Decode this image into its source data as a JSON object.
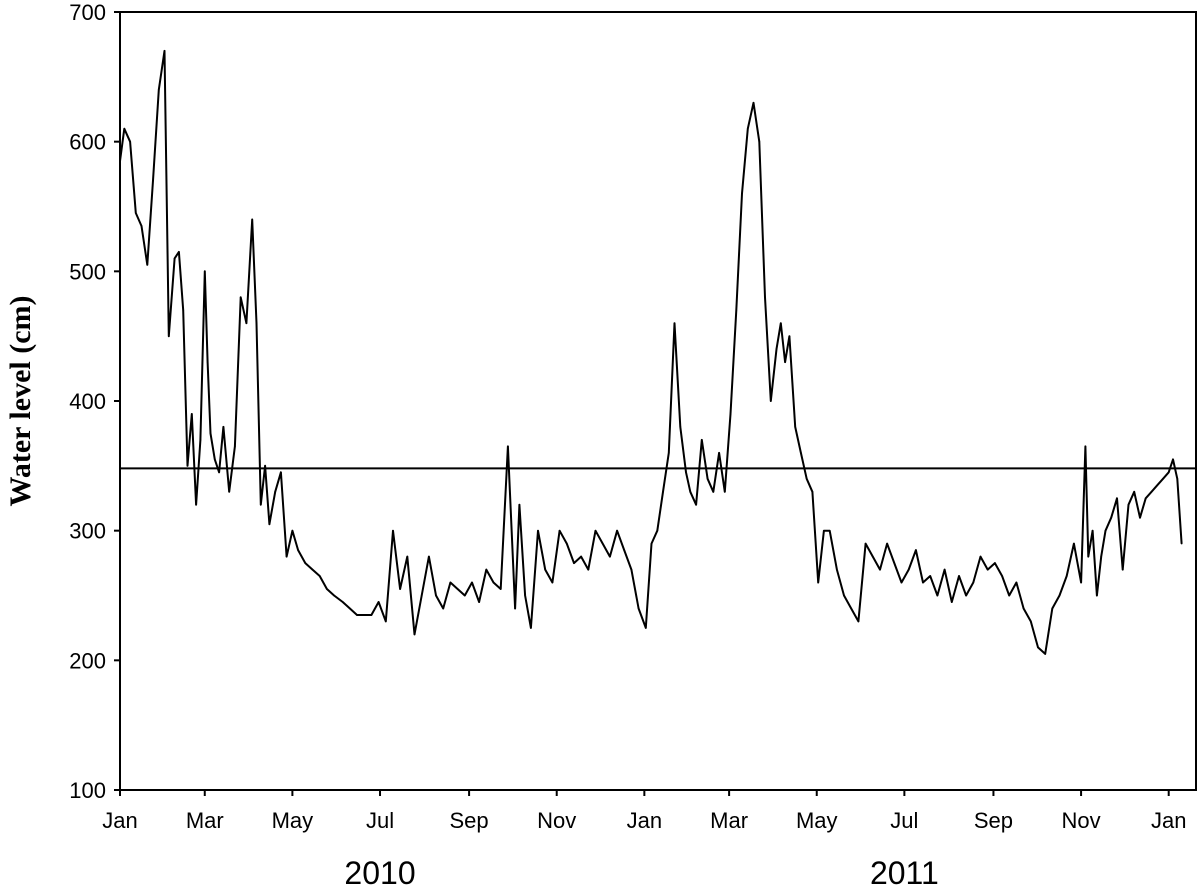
{
  "chart_data": {
    "type": "line",
    "title": "",
    "xlabel": "",
    "ylabel": "Water level (cm)",
    "ylim": [
      100,
      700
    ],
    "yticks": [
      100,
      200,
      300,
      400,
      500,
      600,
      700
    ],
    "xlim": [
      "2010-01-01",
      "2012-01-20"
    ],
    "month_ticks": [
      {
        "label": "Jan",
        "date": "2010-01-01"
      },
      {
        "label": "Mar",
        "date": "2010-03-01"
      },
      {
        "label": "May",
        "date": "2010-05-01"
      },
      {
        "label": "Jul",
        "date": "2010-07-01"
      },
      {
        "label": "Sep",
        "date": "2010-09-01"
      },
      {
        "label": "Nov",
        "date": "2010-11-01"
      },
      {
        "label": "Jan",
        "date": "2011-01-01"
      },
      {
        "label": "Mar",
        "date": "2011-03-01"
      },
      {
        "label": "May",
        "date": "2011-05-01"
      },
      {
        "label": "Jul",
        "date": "2011-07-01"
      },
      {
        "label": "Sep",
        "date": "2011-09-01"
      },
      {
        "label": "Nov",
        "date": "2011-11-01"
      },
      {
        "label": "Jan",
        "date": "2012-01-01"
      }
    ],
    "year_labels": [
      {
        "label": "2010",
        "date": "2010-07-01"
      },
      {
        "label": "2011",
        "date": "2011-07-01"
      }
    ],
    "reference_line": {
      "y": 348
    },
    "grid": false,
    "legend": "none",
    "colors": {
      "line": "#000000",
      "axis": "#000000"
    },
    "series": [
      {
        "x": [
          "2010-01-01",
          "2010-01-04",
          "2010-01-08",
          "2010-01-12",
          "2010-01-16",
          "2010-01-20",
          "2010-01-24",
          "2010-01-28",
          "2010-02-01",
          "2010-02-04",
          "2010-02-08",
          "2010-02-11",
          "2010-02-14",
          "2010-02-17",
          "2010-02-20",
          "2010-02-23",
          "2010-02-26",
          "2010-03-01",
          "2010-03-03",
          "2010-03-05",
          "2010-03-08",
          "2010-03-11",
          "2010-03-14",
          "2010-03-18",
          "2010-03-22",
          "2010-03-26",
          "2010-03-30",
          "2010-04-03",
          "2010-04-06",
          "2010-04-09",
          "2010-04-12",
          "2010-04-15",
          "2010-04-19",
          "2010-04-23",
          "2010-04-27",
          "2010-05-01",
          "2010-05-05",
          "2010-05-10",
          "2010-05-15",
          "2010-05-20",
          "2010-05-25",
          "2010-05-30",
          "2010-06-05",
          "2010-06-10",
          "2010-06-15",
          "2010-06-20",
          "2010-06-25",
          "2010-06-30",
          "2010-07-05",
          "2010-07-10",
          "2010-07-15",
          "2010-07-20",
          "2010-07-25",
          "2010-07-30",
          "2010-08-04",
          "2010-08-09",
          "2010-08-14",
          "2010-08-19",
          "2010-08-24",
          "2010-08-29",
          "2010-09-03",
          "2010-09-08",
          "2010-09-13",
          "2010-09-18",
          "2010-09-23",
          "2010-09-28",
          "2010-10-03",
          "2010-10-06",
          "2010-10-10",
          "2010-10-14",
          "2010-10-19",
          "2010-10-24",
          "2010-10-29",
          "2010-11-03",
          "2010-11-08",
          "2010-11-13",
          "2010-11-18",
          "2010-11-23",
          "2010-11-28",
          "2010-12-03",
          "2010-12-08",
          "2010-12-13",
          "2010-12-18",
          "2010-12-23",
          "2010-12-28",
          "2011-01-02",
          "2011-01-06",
          "2011-01-10",
          "2011-01-14",
          "2011-01-18",
          "2011-01-22",
          "2011-01-26",
          "2011-01-30",
          "2011-02-02",
          "2011-02-06",
          "2011-02-10",
          "2011-02-14",
          "2011-02-18",
          "2011-02-22",
          "2011-02-26",
          "2011-03-02",
          "2011-03-06",
          "2011-03-10",
          "2011-03-14",
          "2011-03-18",
          "2011-03-22",
          "2011-03-26",
          "2011-03-30",
          "2011-04-03",
          "2011-04-06",
          "2011-04-09",
          "2011-04-12",
          "2011-04-16",
          "2011-04-20",
          "2011-04-24",
          "2011-04-28",
          "2011-05-02",
          "2011-05-06",
          "2011-05-10",
          "2011-05-15",
          "2011-05-20",
          "2011-05-25",
          "2011-05-30",
          "2011-06-04",
          "2011-06-09",
          "2011-06-14",
          "2011-06-19",
          "2011-06-24",
          "2011-06-29",
          "2011-07-04",
          "2011-07-09",
          "2011-07-14",
          "2011-07-19",
          "2011-07-24",
          "2011-07-29",
          "2011-08-03",
          "2011-08-08",
          "2011-08-13",
          "2011-08-18",
          "2011-08-23",
          "2011-08-28",
          "2011-09-02",
          "2011-09-07",
          "2011-09-12",
          "2011-09-17",
          "2011-09-22",
          "2011-09-27",
          "2011-10-02",
          "2011-10-07",
          "2011-10-12",
          "2011-10-17",
          "2011-10-22",
          "2011-10-27",
          "2011-11-01",
          "2011-11-04",
          "2011-11-06",
          "2011-11-09",
          "2011-11-12",
          "2011-11-15",
          "2011-11-18",
          "2011-11-22",
          "2011-11-26",
          "2011-11-30",
          "2011-12-04",
          "2011-12-08",
          "2011-12-12",
          "2011-12-16",
          "2011-12-20",
          "2011-12-24",
          "2011-12-28",
          "2012-01-01",
          "2012-01-04",
          "2012-01-07",
          "2012-01-10"
        ],
        "values": [
          585,
          610,
          600,
          545,
          535,
          505,
          570,
          640,
          670,
          450,
          510,
          515,
          470,
          350,
          390,
          320,
          370,
          500,
          430,
          375,
          355,
          345,
          380,
          330,
          365,
          480,
          460,
          540,
          460,
          320,
          350,
          305,
          330,
          345,
          280,
          300,
          285,
          275,
          270,
          265,
          255,
          250,
          245,
          240,
          235,
          235,
          235,
          245,
          230,
          300,
          255,
          280,
          220,
          250,
          280,
          250,
          240,
          260,
          255,
          250,
          260,
          245,
          270,
          260,
          255,
          365,
          240,
          320,
          250,
          225,
          300,
          270,
          260,
          300,
          290,
          275,
          280,
          270,
          300,
          290,
          280,
          300,
          285,
          270,
          240,
          225,
          290,
          300,
          330,
          360,
          460,
          380,
          345,
          330,
          320,
          370,
          340,
          330,
          360,
          330,
          390,
          470,
          560,
          610,
          630,
          600,
          480,
          400,
          440,
          460,
          430,
          450,
          380,
          360,
          340,
          330,
          260,
          300,
          300,
          270,
          250,
          240,
          230,
          290,
          280,
          270,
          290,
          275,
          260,
          270,
          285,
          260,
          265,
          250,
          270,
          245,
          265,
          250,
          260,
          280,
          270,
          275,
          265,
          250,
          260,
          240,
          230,
          210,
          205,
          240,
          250,
          265,
          290,
          260,
          365,
          280,
          300,
          250,
          280,
          300,
          310,
          325,
          270,
          320,
          330,
          310,
          325,
          330,
          335,
          340,
          345,
          355,
          340,
          290
        ]
      }
    ]
  }
}
